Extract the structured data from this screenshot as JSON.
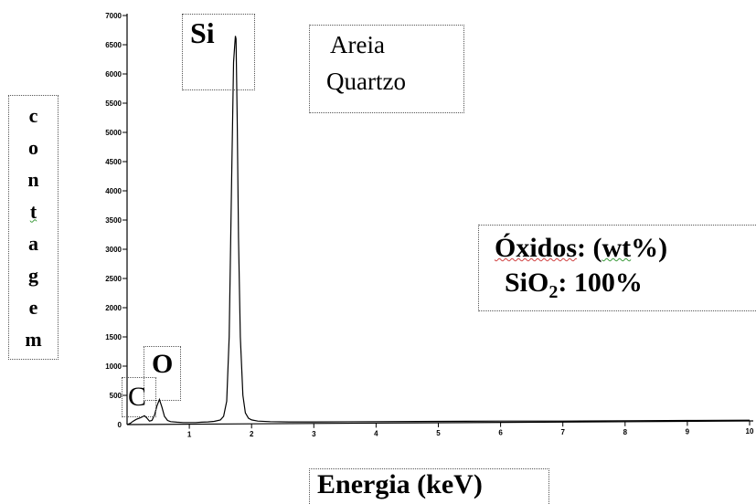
{
  "chart_data": {
    "type": "line",
    "title": "Areia Quartzo",
    "title_lines": [
      "Areia",
      "Quartzo"
    ],
    "xlabel": "Energia (keV)",
    "ylabel": "contagem",
    "ylabel_letters": [
      "c",
      "o",
      "n",
      "t",
      "a",
      "g",
      "e",
      "m"
    ],
    "xlim": [
      0,
      10
    ],
    "ylim": [
      0,
      7000
    ],
    "x_ticks": [
      1,
      2,
      3,
      4,
      5,
      6,
      7,
      8,
      9,
      10
    ],
    "y_ticks": [
      500,
      1000,
      1500,
      2000,
      2500,
      3000,
      3500,
      4000,
      4500,
      5000,
      5500,
      6000,
      6500,
      7000
    ],
    "zero_label": "0",
    "grid": false,
    "peaks": [
      {
        "label": "C",
        "energy": 0.28,
        "counts": 150
      },
      {
        "label": "O",
        "energy": 0.52,
        "counts": 430
      },
      {
        "label": "Si",
        "energy": 1.74,
        "counts": 6650
      }
    ],
    "series": [
      {
        "x": [
          0.0,
          0.05,
          0.1,
          0.15,
          0.2,
          0.24,
          0.28,
          0.32,
          0.36,
          0.4,
          0.44,
          0.48,
          0.52,
          0.56,
          0.6,
          0.65,
          0.7,
          0.8,
          0.9,
          1.0,
          1.1,
          1.2,
          1.3,
          1.4,
          1.5,
          1.55,
          1.6,
          1.64,
          1.68,
          1.71,
          1.73,
          1.74,
          1.75,
          1.77,
          1.79,
          1.82,
          1.86,
          1.9,
          1.95,
          2.0,
          2.1,
          2.3,
          2.6,
          3.0,
          4.0,
          5.0,
          6.0,
          7.0,
          8.0,
          9.0,
          10.0
        ],
        "y": [
          0,
          20,
          60,
          90,
          110,
          130,
          150,
          110,
          60,
          70,
          160,
          320,
          430,
          300,
          140,
          70,
          50,
          40,
          35,
          35,
          35,
          40,
          45,
          55,
          80,
          140,
          400,
          1500,
          4200,
          6200,
          6500,
          6650,
          6600,
          5200,
          3200,
          1500,
          500,
          200,
          110,
          80,
          60,
          50,
          45,
          45,
          50,
          55,
          60,
          60,
          65,
          70,
          75
        ]
      }
    ],
    "annotation": {
      "heading": "Óxidos: (wt%)",
      "heading_parts": [
        "Óxidos",
        ": (",
        "wt",
        "%)"
      ],
      "compound_main": "SiO",
      "compound_sub": "2",
      "value": ": 100%"
    }
  },
  "colors": {
    "line": "#000000",
    "box_border": "#555555"
  }
}
